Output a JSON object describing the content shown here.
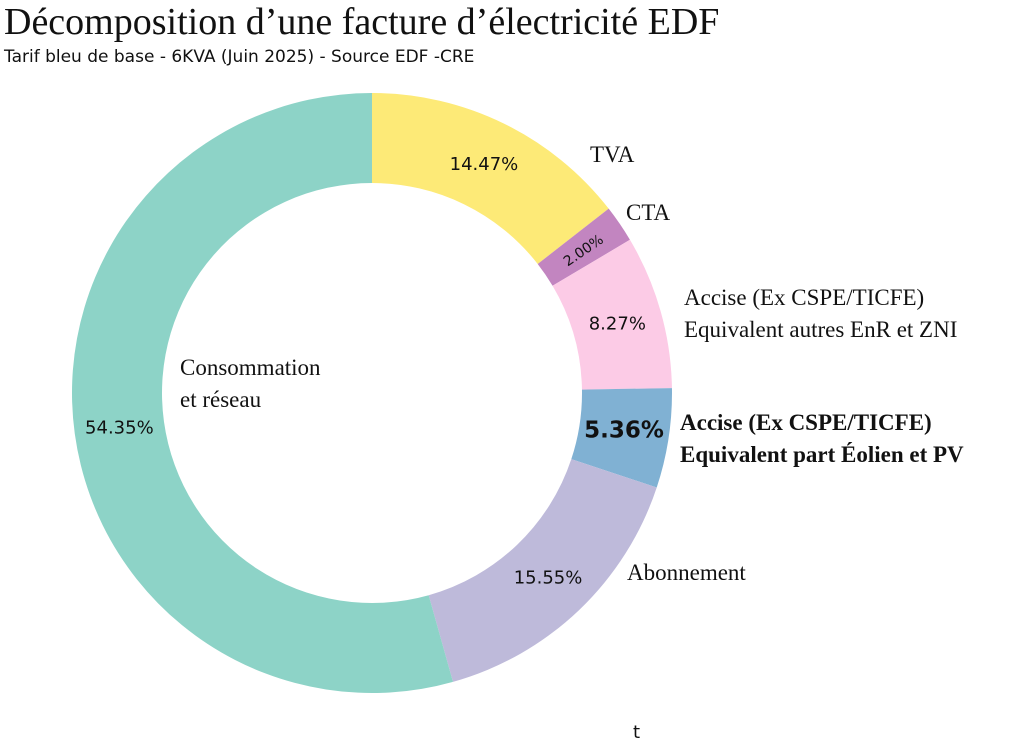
{
  "chart_data": {
    "type": "donut",
    "title": "Décomposition d’une facture d’électricité EDF",
    "subtitle": "Tarif bleu de base - 6KVA (Juin 2025) - Source EDF -CRE",
    "categories": [
      "TVA",
      "CTA",
      "Accise (Ex CSPE/TICFE)\nEquivalent autres EnR et ZNI",
      "Accise (Ex CSPE/TICFE)\nEquivalent part Éolien et PV",
      "Abonnement",
      "Consommation\net réseau"
    ],
    "values": [
      14.47,
      2.0,
      8.27,
      5.36,
      15.55,
      54.35
    ],
    "value_labels": [
      "14.47%",
      "2.00%",
      "8.27%",
      "5.36%",
      "15.55%",
      "54.35%"
    ],
    "colors": [
      "#fdea77",
      "#c285c0",
      "#fccbe6",
      "#80b1d3",
      "#bebada",
      "#8dd3c7"
    ],
    "annotation": "t"
  }
}
